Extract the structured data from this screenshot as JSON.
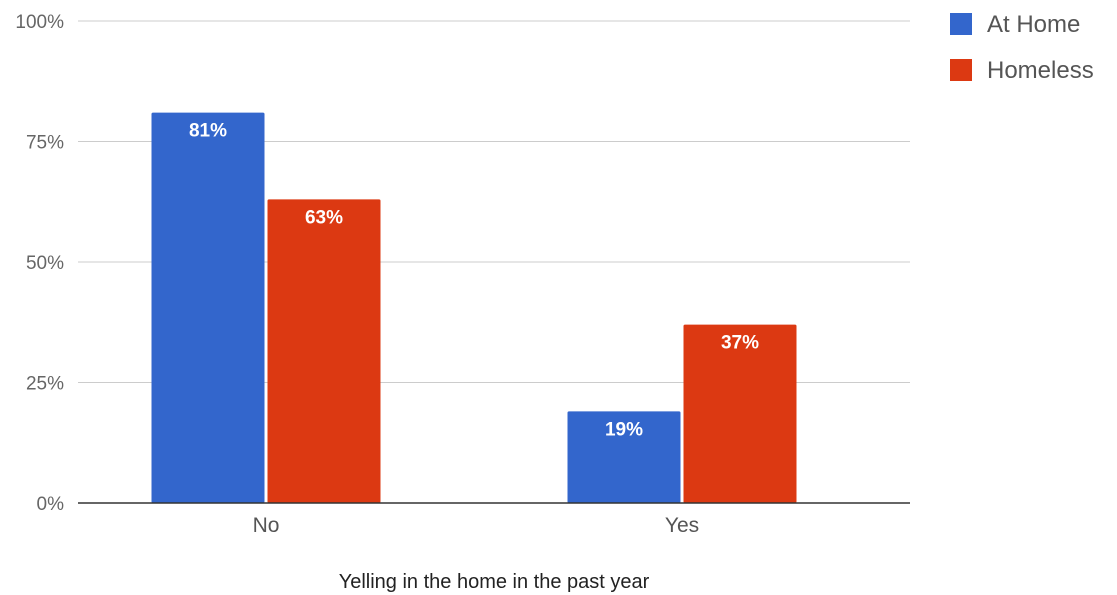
{
  "chart_data": {
    "type": "bar",
    "categories": [
      "No",
      "Yes"
    ],
    "series": [
      {
        "name": "At Home",
        "color": "#3366cc",
        "values": [
          81,
          19
        ],
        "labels": [
          "81%",
          "19%"
        ]
      },
      {
        "name": "Homeless",
        "color": "#dc3912",
        "values": [
          63,
          37
        ],
        "labels": [
          "63%",
          "37%"
        ]
      }
    ],
    "xlabel": "Yelling in the home in the past year",
    "ylabel": "",
    "ylim": [
      0,
      100
    ],
    "yticks": [
      0,
      25,
      50,
      75,
      100
    ],
    "ytick_labels": [
      "0%",
      "25%",
      "50%",
      "75%",
      "100%"
    ],
    "grid": true,
    "legend_position": "top-right"
  }
}
